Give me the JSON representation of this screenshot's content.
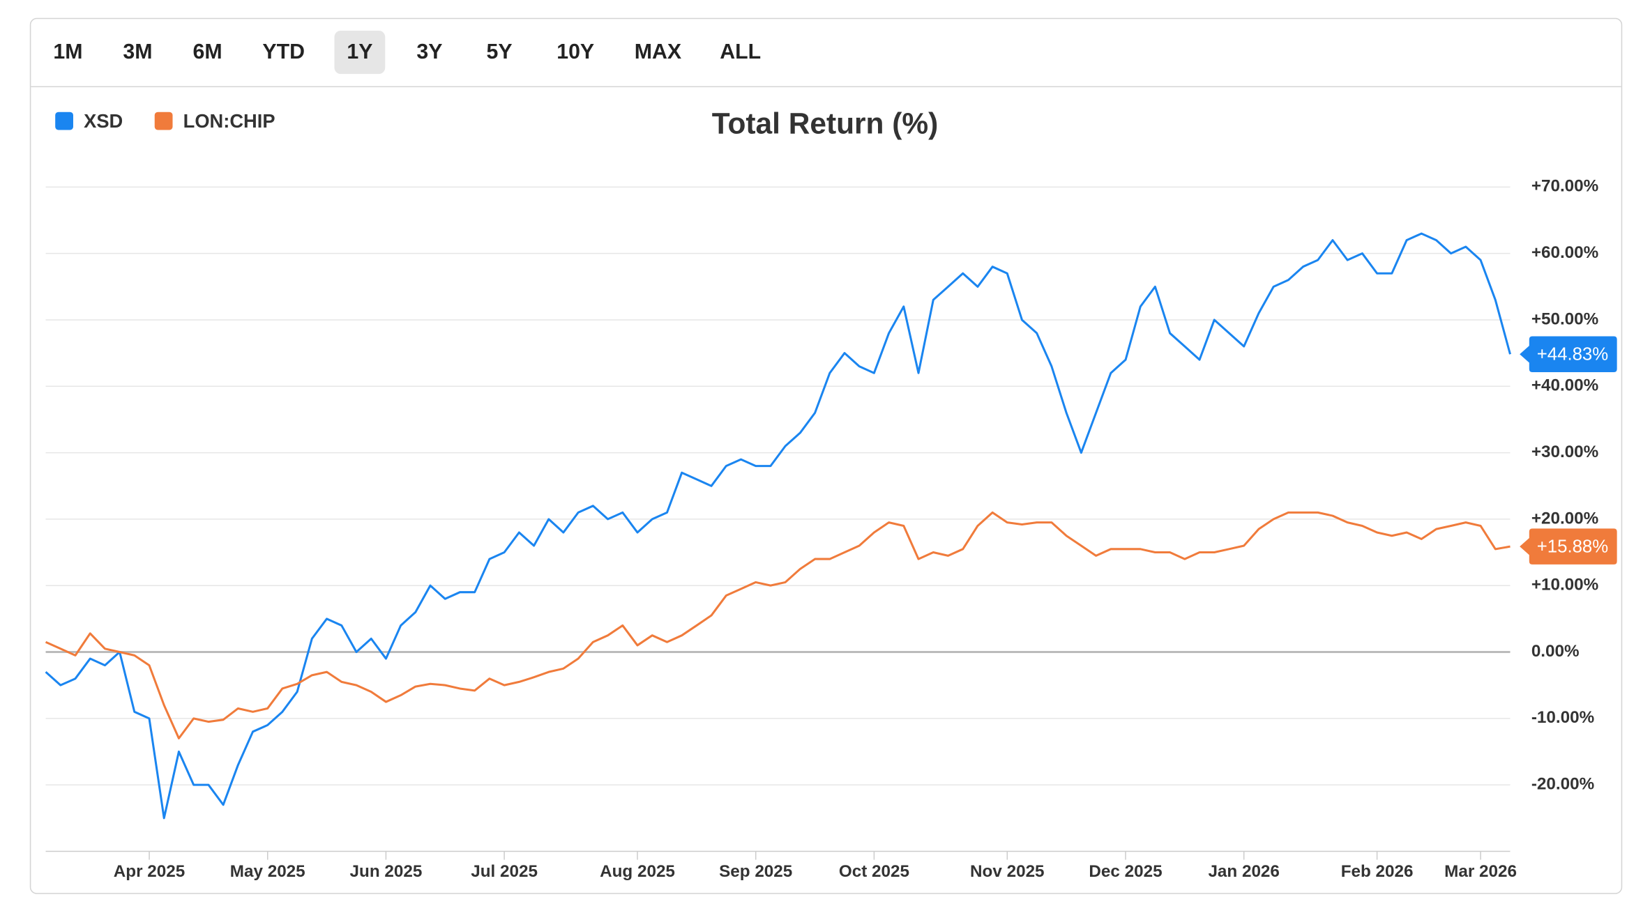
{
  "range_buttons": [
    {
      "label": "1M"
    },
    {
      "label": "3M"
    },
    {
      "label": "6M"
    },
    {
      "label": "YTD"
    },
    {
      "label": "1Y",
      "active": true
    },
    {
      "label": "3Y"
    },
    {
      "label": "5Y"
    },
    {
      "label": "10Y"
    },
    {
      "label": "MAX"
    },
    {
      "label": "ALL"
    }
  ],
  "chart_data": {
    "type": "line",
    "title": "Total Return (%)",
    "categories": [
      null,
      null,
      null,
      null,
      null,
      null,
      null,
      "Apr 2025",
      null,
      null,
      null,
      null,
      null,
      null,
      null,
      "May 2025",
      null,
      null,
      null,
      null,
      null,
      null,
      null,
      "Jun 2025",
      null,
      null,
      null,
      null,
      null,
      null,
      null,
      "Jul 2025",
      null,
      null,
      null,
      null,
      null,
      null,
      null,
      null,
      "Aug 2025",
      null,
      null,
      null,
      null,
      null,
      null,
      null,
      "Sep 2025",
      null,
      null,
      null,
      null,
      null,
      null,
      null,
      "Oct 2025",
      null,
      null,
      null,
      null,
      null,
      null,
      null,
      null,
      "Nov 2025",
      null,
      null,
      null,
      null,
      null,
      null,
      null,
      "Dec 2025",
      null,
      null,
      null,
      null,
      null,
      null,
      null,
      "Jan 2026",
      null,
      null,
      null,
      null,
      null,
      null,
      null,
      null,
      "Feb 2026",
      null,
      null,
      null,
      null,
      null,
      null,
      "Mar 2026",
      null,
      null
    ],
    "series": [
      {
        "name": "XSD",
        "color": "#1a85f0",
        "end_label": "+44.83%",
        "values": [
          -3,
          -5,
          -4,
          -1,
          -2,
          0,
          -9,
          -10,
          -25,
          -15,
          -20,
          -20,
          -23,
          -17,
          -12,
          -11,
          -9,
          -6,
          2,
          5,
          4,
          0,
          2,
          -1,
          4,
          6,
          10,
          8,
          9,
          9,
          14,
          15,
          18,
          16,
          20,
          18,
          21,
          22,
          20,
          21,
          18,
          20,
          21,
          27,
          26,
          25,
          28,
          29,
          28,
          28,
          31,
          33,
          36,
          42,
          45,
          43,
          42,
          48,
          52,
          42,
          53,
          55,
          57,
          55,
          58,
          57,
          50,
          48,
          43,
          36,
          30,
          36,
          42,
          44,
          52,
          55,
          48,
          46,
          44,
          50,
          48,
          46,
          51,
          55,
          56,
          58,
          59,
          62,
          59,
          60,
          57,
          57,
          62,
          63,
          62,
          60,
          61,
          59,
          53,
          44.83
        ]
      },
      {
        "name": "LON:CHIP",
        "color": "#f07b3b",
        "end_label": "+15.88%",
        "values": [
          1.5,
          0.5,
          -0.5,
          2.8,
          0.5,
          0,
          -0.5,
          -2,
          -8,
          -13,
          -10,
          -10.5,
          -10.2,
          -8.5,
          -9,
          -8.5,
          -5.5,
          -4.8,
          -3.5,
          -3,
          -4.5,
          -5,
          -6,
          -7.5,
          -6.5,
          -5.2,
          -4.8,
          -5,
          -5.5,
          -5.8,
          -4,
          -5,
          -4.5,
          -3.8,
          -3,
          -2.5,
          -1,
          1.5,
          2.5,
          4,
          1,
          2.5,
          1.5,
          2.5,
          4,
          5.5,
          8.5,
          9.5,
          10.5,
          10,
          10.5,
          12.5,
          14,
          14,
          15,
          16,
          18,
          19.5,
          19,
          14,
          15,
          14.5,
          15.5,
          19,
          21,
          19.5,
          19.2,
          19.5,
          19.5,
          17.5,
          16,
          14.5,
          15.5,
          15.5,
          15.5,
          15,
          15,
          14,
          15,
          15,
          15.5,
          16,
          18.5,
          20,
          21,
          21,
          21,
          20.5,
          19.5,
          19,
          18,
          17.5,
          18,
          17,
          18.5,
          19,
          19.5,
          19,
          15.5,
          15.88
        ]
      }
    ],
    "ylim": [
      -30,
      72
    ],
    "yticks": [
      {
        "value": -20,
        "label": "-20.00%"
      },
      {
        "value": -10,
        "label": "-10.00%"
      },
      {
        "value": 0,
        "label": "0.00%"
      },
      {
        "value": 10,
        "label": "+10.00%"
      },
      {
        "value": 20,
        "label": "+20.00%"
      },
      {
        "value": 30,
        "label": "+30.00%"
      },
      {
        "value": 40,
        "label": "+40.00%"
      },
      {
        "value": 50,
        "label": "+50.00%"
      },
      {
        "value": 60,
        "label": "+60.00%"
      },
      {
        "value": 70,
        "label": "+70.00%"
      }
    ],
    "grid": true,
    "legend": "top-left"
  }
}
